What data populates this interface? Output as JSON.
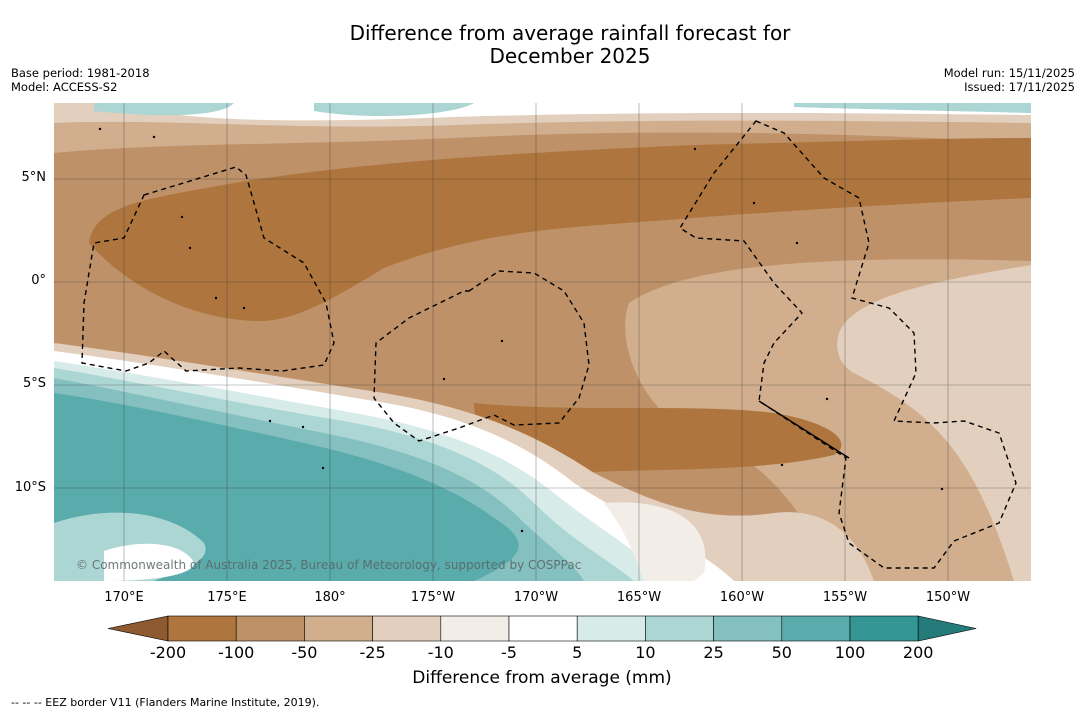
{
  "title_line1": "Difference from average rainfall forecast for",
  "title_line2": "December 2025",
  "base_period": "Base period: 1981-2018",
  "model": "Model: ACCESS-S2",
  "model_run": "Model run: 15/11/2025",
  "issued": "Issued: 17/11/2025",
  "copyright": "© Commonwealth of Australia 2025, Bureau of Meteorology, supported by COSPPac",
  "footnote": "--  --  -- EEZ border V11 (Flanders Marine Institute, 2019).",
  "lat_labels": [
    "5°N",
    "0°",
    "5°S",
    "10°S"
  ],
  "lon_labels": [
    "170°E",
    "175°E",
    "180°",
    "175°W",
    "170°W",
    "165°W",
    "160°W",
    "155°W",
    "150°W"
  ],
  "colorbar": {
    "ticks": [
      "-200",
      "-100",
      "-50",
      "-25",
      "-10",
      "-5",
      "5",
      "10",
      "25",
      "50",
      "100",
      "200"
    ],
    "colors": [
      "#8e5a30",
      "#ae763e",
      "#be9169",
      "#d1ae8d",
      "#e2cfbd",
      "#f2ede7",
      "#ffffff",
      "#d7ebe9",
      "#acd6d4",
      "#84c0bf",
      "#5aabab",
      "#339694",
      "#247b79"
    ],
    "label": "Difference from average (mm)"
  }
}
